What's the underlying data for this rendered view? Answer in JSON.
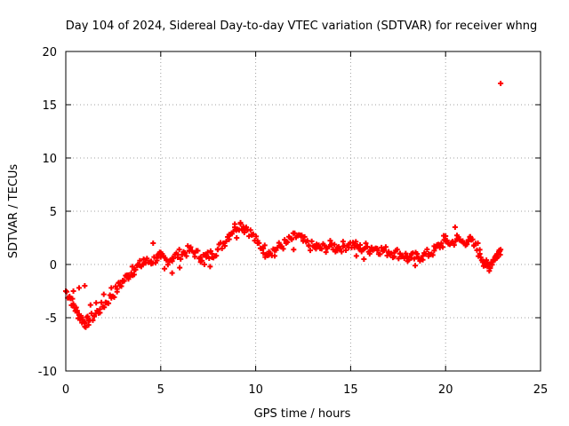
{
  "chart_data": {
    "type": "scatter",
    "title": "Day 104 of 2024, Sidereal Day-to-day VTEC variation (SDTVAR) for receiver whng",
    "xlabel": "GPS time / hours",
    "ylabel": "SDTVAR / TECUs",
    "xlim": [
      0,
      25
    ],
    "ylim": [
      -10,
      20
    ],
    "xticks": [
      0,
      5,
      10,
      15,
      20,
      25
    ],
    "yticks": [
      -10,
      -5,
      0,
      5,
      10,
      15,
      20
    ],
    "xtick_labels": [
      "0",
      "5",
      "10",
      "15",
      "20",
      "25"
    ],
    "ytick_labels": [
      "-10",
      "-5",
      "0",
      "5",
      "10",
      "15",
      "20"
    ],
    "grid": true,
    "marker": "+",
    "series": [
      {
        "name": "SDTVAR",
        "color": "#ff0000",
        "band_half_width": 0.5,
        "points": [
          [
            0.0,
            -2.5
          ],
          [
            0.2,
            -3.0
          ],
          [
            0.4,
            -3.8
          ],
          [
            0.6,
            -4.5
          ],
          [
            0.8,
            -5.0
          ],
          [
            1.0,
            -5.5
          ],
          [
            1.2,
            -5.3
          ],
          [
            1.5,
            -4.8
          ],
          [
            1.8,
            -4.2
          ],
          [
            2.1,
            -3.6
          ],
          [
            2.4,
            -3.0
          ],
          [
            2.7,
            -2.3
          ],
          [
            3.0,
            -1.6
          ],
          [
            3.3,
            -1.0
          ],
          [
            3.6,
            -0.5
          ],
          [
            3.9,
            -0.1
          ],
          [
            4.2,
            0.2
          ],
          [
            4.5,
            0.3
          ],
          [
            4.8,
            0.6
          ],
          [
            5.0,
            0.7
          ],
          [
            5.3,
            0.4
          ],
          [
            5.6,
            0.6
          ],
          [
            5.9,
            0.9
          ],
          [
            6.2,
            1.1
          ],
          [
            6.5,
            1.3
          ],
          [
            6.8,
            1.1
          ],
          [
            7.1,
            0.7
          ],
          [
            7.4,
            0.7
          ],
          [
            7.7,
            1.0
          ],
          [
            8.0,
            1.4
          ],
          [
            8.3,
            2.0
          ],
          [
            8.6,
            2.8
          ],
          [
            8.9,
            3.5
          ],
          [
            9.2,
            3.8
          ],
          [
            9.5,
            3.5
          ],
          [
            9.8,
            2.8
          ],
          [
            10.1,
            2.0
          ],
          [
            10.4,
            1.5
          ],
          [
            10.7,
            1.2
          ],
          [
            11.0,
            1.4
          ],
          [
            11.3,
            1.7
          ],
          [
            11.6,
            2.0
          ],
          [
            11.9,
            2.4
          ],
          [
            12.2,
            2.7
          ],
          [
            12.5,
            2.2
          ],
          [
            12.8,
            1.8
          ],
          [
            13.1,
            1.6
          ],
          [
            13.4,
            1.5
          ],
          [
            13.7,
            1.6
          ],
          [
            14.0,
            1.8
          ],
          [
            14.3,
            1.6
          ],
          [
            14.6,
            1.7
          ],
          [
            14.9,
            1.9
          ],
          [
            15.2,
            1.8
          ],
          [
            15.5,
            1.5
          ],
          [
            15.8,
            1.6
          ],
          [
            16.1,
            1.6
          ],
          [
            16.4,
            1.5
          ],
          [
            16.7,
            1.3
          ],
          [
            17.0,
            1.2
          ],
          [
            17.3,
            1.1
          ],
          [
            17.6,
            1.0
          ],
          [
            17.9,
            0.8
          ],
          [
            18.2,
            0.6
          ],
          [
            18.5,
            0.7
          ],
          [
            18.8,
            0.8
          ],
          [
            19.1,
            1.0
          ],
          [
            19.4,
            1.3
          ],
          [
            19.7,
            1.8
          ],
          [
            20.0,
            2.2
          ],
          [
            20.3,
            2.0
          ],
          [
            20.6,
            2.4
          ],
          [
            20.9,
            2.1
          ],
          [
            21.2,
            2.3
          ],
          [
            21.5,
            1.8
          ],
          [
            21.8,
            1.0
          ],
          [
            22.0,
            0.3
          ],
          [
            22.2,
            -0.2
          ],
          [
            22.4,
            0.2
          ],
          [
            22.6,
            0.7
          ],
          [
            22.8,
            1.1
          ],
          [
            22.9,
            1.4
          ]
        ],
        "secondary_points": [
          [
            0.4,
            -2.5
          ],
          [
            0.7,
            -2.2
          ],
          [
            1.0,
            -2.0
          ],
          [
            1.3,
            -3.8
          ],
          [
            1.6,
            -3.6
          ],
          [
            2.0,
            -2.8
          ],
          [
            2.4,
            -2.2
          ],
          [
            2.8,
            -1.7
          ],
          [
            3.2,
            -1.2
          ],
          [
            3.5,
            -0.2
          ],
          [
            3.8,
            0.0
          ],
          [
            4.1,
            0.5
          ],
          [
            4.6,
            2.0
          ],
          [
            5.2,
            -0.4
          ],
          [
            5.6,
            -0.8
          ],
          [
            6.0,
            -0.3
          ],
          [
            7.3,
            0.0
          ],
          [
            7.6,
            -0.2
          ],
          [
            9.0,
            2.5
          ],
          [
            9.4,
            3.0
          ],
          [
            10.5,
            0.7
          ],
          [
            11.0,
            0.8
          ],
          [
            12.0,
            1.4
          ],
          [
            12.4,
            2.6
          ],
          [
            13.2,
            1.9
          ],
          [
            14.2,
            1.2
          ],
          [
            15.3,
            0.8
          ],
          [
            15.7,
            0.5
          ],
          [
            16.0,
            1.0
          ],
          [
            18.0,
            0.3
          ],
          [
            18.4,
            -0.1
          ],
          [
            19.9,
            2.7
          ],
          [
            20.5,
            3.5
          ],
          [
            21.3,
            2.6
          ],
          [
            21.7,
            2.0
          ],
          [
            22.3,
            -0.6
          ],
          [
            22.7,
            0.6
          ]
        ],
        "outliers": [
          [
            22.9,
            17.0
          ]
        ]
      }
    ]
  }
}
